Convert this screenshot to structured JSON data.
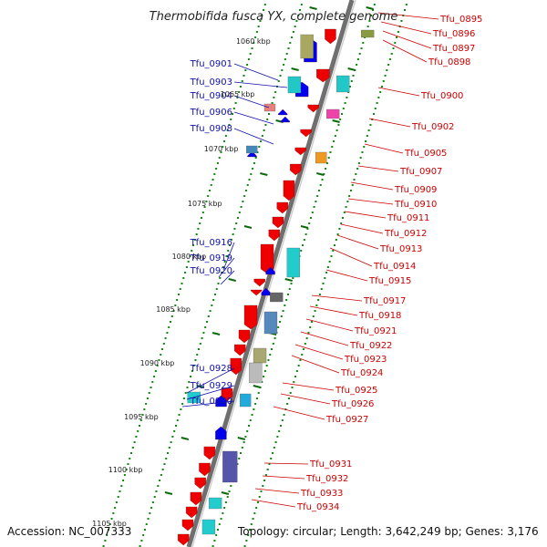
{
  "title": "Thermobifida fusca YX, complete genome",
  "footer": {
    "accession": "Accession: NC_007333",
    "summary": "Topology: circular; Length: 3,642,249 bp; Genes: 3,176"
  },
  "colors": {
    "backbone": "#7a7a7a",
    "forward_gene": "#ee0000",
    "reverse_gene": "#0000ee",
    "tick_dot": "#118811",
    "tick_mark": "#0a6a0a",
    "label_forward": "#cc0000",
    "label_reverse": "#1010aa"
  },
  "kbp_labels": [
    "1060 kbp",
    "1065 kbp",
    "1070 kbp",
    "1075 kbp",
    "1080 kbp",
    "1085 kbp",
    "1090 kbp",
    "1095 kbp",
    "1100 kbp",
    "1105 kbp"
  ],
  "left_labels": [
    "Tfu_0901",
    "Tfu_0903",
    "Tfu_0904",
    "Tfu_0906",
    "Tfu_0908",
    "Tfu_0916",
    "Tfu_0919",
    "Tfu_0920",
    "Tfu_0928",
    "Tfu_0929",
    "Tfu_0930"
  ],
  "right_labels": [
    "Tfu_0895",
    "Tfu_0896",
    "Tfu_0897",
    "Tfu_0898",
    "Tfu_0900",
    "Tfu_0902",
    "Tfu_0905",
    "Tfu_0907",
    "Tfu_0909",
    "Tfu_0910",
    "Tfu_0911",
    "Tfu_0912",
    "Tfu_0913",
    "Tfu_0914",
    "Tfu_0915",
    "Tfu_0917",
    "Tfu_0918",
    "Tfu_0921",
    "Tfu_0922",
    "Tfu_0923",
    "Tfu_0924",
    "Tfu_0925",
    "Tfu_0926",
    "Tfu_0927",
    "Tfu_0931",
    "Tfu_0932",
    "Tfu_0933",
    "Tfu_0934"
  ]
}
